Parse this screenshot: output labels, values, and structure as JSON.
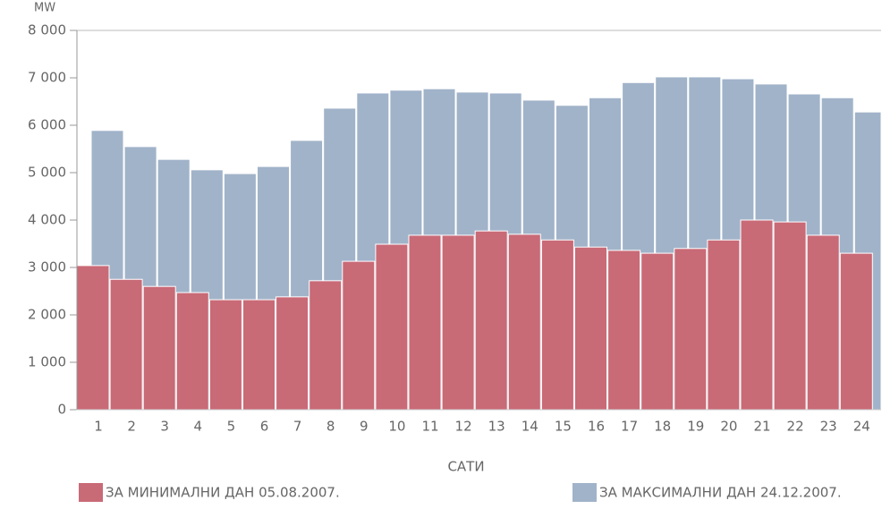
{
  "chart_data": {
    "type": "bar",
    "y_label": "MW",
    "x_label": "САТИ",
    "categories": [
      "1",
      "2",
      "3",
      "4",
      "5",
      "6",
      "7",
      "8",
      "9",
      "10",
      "11",
      "12",
      "13",
      "14",
      "15",
      "16",
      "17",
      "18",
      "19",
      "20",
      "21",
      "22",
      "23",
      "24"
    ],
    "series": [
      {
        "name": "ЗА МИНИМАЛНИ ДАН 05.08.2007.",
        "color": "#c96a77",
        "values": [
          3040,
          2750,
          2600,
          2470,
          2320,
          2320,
          2380,
          2720,
          3130,
          3490,
          3680,
          3680,
          3770,
          3700,
          3580,
          3430,
          3360,
          3300,
          3400,
          3580,
          4000,
          3960,
          3680,
          3300
        ]
      },
      {
        "name": "ЗА МАКСИМАЛНИ ДАН 24.12.2007.",
        "color": "#a1b3c9",
        "values": [
          5890,
          5550,
          5280,
          5060,
          4980,
          5130,
          5680,
          6360,
          6680,
          6740,
          6770,
          6700,
          6680,
          6530,
          6420,
          6580,
          6900,
          7020,
          7020,
          6980,
          6870,
          6660,
          6580,
          6280
        ]
      }
    ],
    "ylim": [
      0,
      8000
    ],
    "yticks": [
      0,
      {
        "value": 1000,
        "label": "1 000"
      },
      {
        "value": 2000,
        "label": "2 000"
      },
      {
        "value": 3000,
        "label": "3 000"
      },
      {
        "value": 4000,
        "label": "4 000"
      },
      {
        "value": 5000,
        "label": "5 000"
      },
      {
        "value": 6000,
        "label": "6 000"
      },
      {
        "value": 7000,
        "label": "7 000"
      },
      {
        "value": 8000,
        "label": "8 000"
      }
    ]
  }
}
